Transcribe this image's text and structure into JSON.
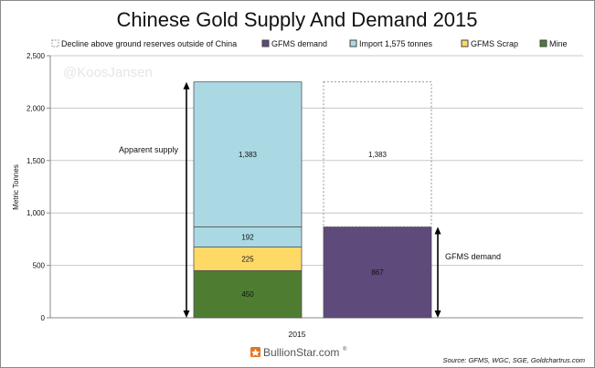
{
  "chart_data": {
    "type": "bar",
    "title": "Chinese Gold Supply And Demand 2015",
    "ylabel": "Metric Tonnes",
    "xlabel": "",
    "categories": [
      "2015"
    ],
    "ylim": [
      0,
      2500
    ],
    "yticks": [
      0,
      500,
      1000,
      1500,
      2000,
      2500
    ],
    "ytick_labels": [
      "0",
      "500",
      "1,000",
      "1,500",
      "2,000",
      "2,500"
    ],
    "grid": true,
    "legend_position": "top",
    "legend": [
      {
        "label": "Decline above ground reserves outside of China",
        "color": "#ffffff",
        "style": "dashed"
      },
      {
        "label": "GFMS demand",
        "color": "#5e4a7b"
      },
      {
        "label": "Import 1,575 tonnes",
        "color": "#aad9e3"
      },
      {
        "label": "GFMS Scrap",
        "color": "#ffd966"
      },
      {
        "label": "Mine",
        "color": "#4e7d32"
      }
    ],
    "stacks": [
      {
        "name": "Apparent supply",
        "segments": [
          {
            "series": "Mine",
            "value": 450,
            "label": "450",
            "color": "#4e7d32"
          },
          {
            "series": "GFMS Scrap",
            "value": 225,
            "label": "225",
            "color": "#ffd966"
          },
          {
            "series": "Import 1,575 tonnes",
            "value": 192,
            "label": "192",
            "color": "#aad9e3"
          },
          {
            "series": "Import 1,575 tonnes",
            "value": 1383,
            "label": "1,383",
            "color": "#aad9e3"
          }
        ]
      },
      {
        "name": "GFMS demand",
        "segments": [
          {
            "series": "GFMS demand",
            "value": 867,
            "label": "867",
            "color": "#5e4a7b"
          },
          {
            "series": "Decline above ground reserves outside of China",
            "value": 1383,
            "label": "1,383",
            "color": "none",
            "dashed": true
          }
        ]
      }
    ],
    "annotations": {
      "watermark": "@KoosJansen",
      "apparent_supply": "Apparent supply",
      "gfms_demand": "GFMS demand"
    }
  },
  "footer": {
    "brand": "BullionStar.com",
    "brand_mark": "®",
    "source": "Source: GFMS, WGC, SGE, Goldchartrus.com"
  }
}
